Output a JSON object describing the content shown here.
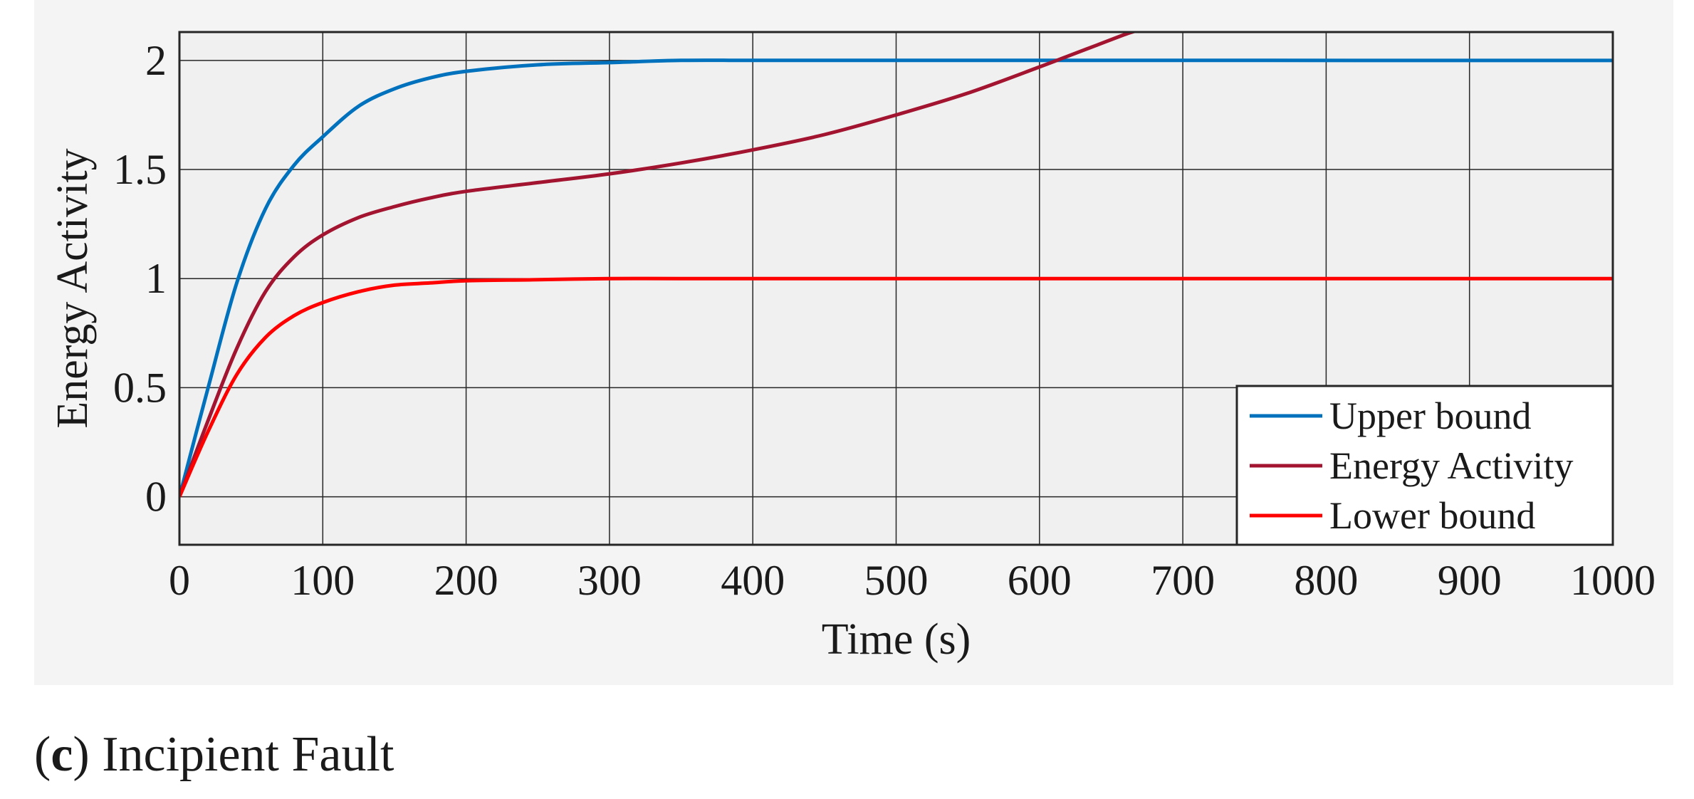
{
  "caption": {
    "letter": "c",
    "text": "Incipient Fault"
  },
  "colors": {
    "panel_background": "#f0f0f0",
    "figure_background": "#f4f4f4",
    "upper_bound": "#0072bd",
    "energy_activity": "#a2142f",
    "lower_bound": "#ff0000"
  },
  "chart_data": {
    "type": "line",
    "title": "",
    "xlabel": "Time (s)",
    "ylabel": "Energy Activity",
    "xlim": [
      0,
      1000
    ],
    "ylim": [
      -0.22,
      2.13
    ],
    "xticks": [
      0,
      100,
      200,
      300,
      400,
      500,
      600,
      700,
      800,
      900,
      1000
    ],
    "xtick_labels": [
      "0",
      "100",
      "200",
      "300",
      "400",
      "500",
      "600",
      "700",
      "800",
      "900",
      "1000"
    ],
    "yticks": [
      0,
      0.5,
      1,
      1.5,
      2
    ],
    "ytick_labels": [
      "0",
      "0.5",
      "1",
      "1.5",
      "2"
    ],
    "grid": true,
    "legend_position": "bottom-right",
    "x": [
      0,
      20,
      40,
      60,
      80,
      100,
      125,
      150,
      175,
      200,
      250,
      300,
      350,
      400,
      450,
      500,
      550,
      600,
      620,
      640,
      660,
      670
    ],
    "series": [
      {
        "name": "Upper bound",
        "color": "#0072bd",
        "values": [
          0,
          0.5,
          0.98,
          1.32,
          1.52,
          1.65,
          1.79,
          1.87,
          1.92,
          1.95,
          1.98,
          1.99,
          2.0,
          2.0,
          2.0,
          2.0,
          2.0,
          2.0,
          2.0,
          2.0,
          2.0,
          2.0
        ]
      },
      {
        "name": "Energy Activity",
        "color": "#a2142f",
        "values": [
          0,
          0.35,
          0.68,
          0.94,
          1.1,
          1.2,
          1.28,
          1.33,
          1.37,
          1.4,
          1.44,
          1.48,
          1.53,
          1.59,
          1.66,
          1.75,
          1.85,
          1.97,
          2.02,
          2.07,
          2.12,
          2.14
        ]
      },
      {
        "name": "Lower bound",
        "color": "#ff0000",
        "values": [
          0,
          0.3,
          0.56,
          0.73,
          0.83,
          0.89,
          0.94,
          0.97,
          0.98,
          0.99,
          0.995,
          1.0,
          1.0,
          1.0,
          1.0,
          1.0,
          1.0,
          1.0,
          1.0,
          1.0,
          1.0,
          1.0
        ]
      }
    ]
  }
}
